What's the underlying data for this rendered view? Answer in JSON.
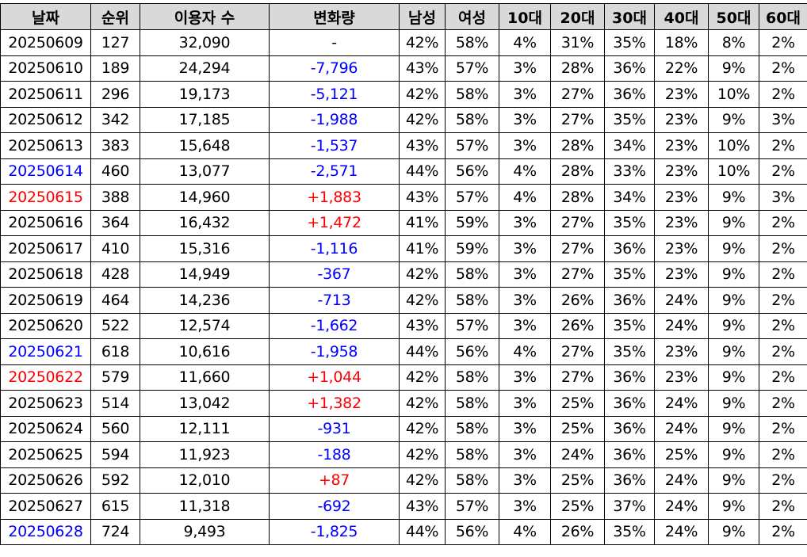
{
  "headers": [
    "날짜",
    "순위",
    "이용자 수",
    "변화량",
    "남성",
    "여성",
    "10대",
    "20대",
    "30대",
    "40대",
    "50대",
    "60대"
  ],
  "colors": {
    "header_bg": "#d9d9d9",
    "positive": "#ff0000",
    "negative": "#0000ff",
    "default": "#000000",
    "weekend_blue": "#0000ff",
    "weekend_red": "#ff0000"
  },
  "rows": [
    {
      "date": "20250609",
      "date_color": "default",
      "rank": "127",
      "users": "32,090",
      "change": "-",
      "change_color": "default",
      "male": "42%",
      "female": "58%",
      "a10": "4%",
      "a20": "31%",
      "a30": "35%",
      "a40": "18%",
      "a50": "8%",
      "a60": "2%"
    },
    {
      "date": "20250610",
      "date_color": "default",
      "rank": "189",
      "users": "24,294",
      "change": "-7,796",
      "change_color": "negative",
      "male": "43%",
      "female": "57%",
      "a10": "3%",
      "a20": "28%",
      "a30": "36%",
      "a40": "22%",
      "a50": "9%",
      "a60": "2%"
    },
    {
      "date": "20250611",
      "date_color": "default",
      "rank": "296",
      "users": "19,173",
      "change": "-5,121",
      "change_color": "negative",
      "male": "42%",
      "female": "58%",
      "a10": "3%",
      "a20": "27%",
      "a30": "36%",
      "a40": "23%",
      "a50": "10%",
      "a60": "2%"
    },
    {
      "date": "20250612",
      "date_color": "default",
      "rank": "342",
      "users": "17,185",
      "change": "-1,988",
      "change_color": "negative",
      "male": "42%",
      "female": "58%",
      "a10": "3%",
      "a20": "27%",
      "a30": "35%",
      "a40": "23%",
      "a50": "9%",
      "a60": "3%"
    },
    {
      "date": "20250613",
      "date_color": "default",
      "rank": "383",
      "users": "15,648",
      "change": "-1,537",
      "change_color": "negative",
      "male": "43%",
      "female": "57%",
      "a10": "3%",
      "a20": "28%",
      "a30": "34%",
      "a40": "23%",
      "a50": "10%",
      "a60": "2%"
    },
    {
      "date": "20250614",
      "date_color": "weekend_blue",
      "rank": "460",
      "users": "13,077",
      "change": "-2,571",
      "change_color": "negative",
      "male": "44%",
      "female": "56%",
      "a10": "4%",
      "a20": "28%",
      "a30": "33%",
      "a40": "23%",
      "a50": "10%",
      "a60": "2%"
    },
    {
      "date": "20250615",
      "date_color": "weekend_red",
      "rank": "388",
      "users": "14,960",
      "change": "+1,883",
      "change_color": "positive",
      "male": "43%",
      "female": "57%",
      "a10": "4%",
      "a20": "28%",
      "a30": "34%",
      "a40": "23%",
      "a50": "9%",
      "a60": "3%"
    },
    {
      "date": "20250616",
      "date_color": "default",
      "rank": "364",
      "users": "16,432",
      "change": "+1,472",
      "change_color": "positive",
      "male": "41%",
      "female": "59%",
      "a10": "3%",
      "a20": "27%",
      "a30": "35%",
      "a40": "23%",
      "a50": "9%",
      "a60": "2%"
    },
    {
      "date": "20250617",
      "date_color": "default",
      "rank": "410",
      "users": "15,316",
      "change": "-1,116",
      "change_color": "negative",
      "male": "41%",
      "female": "59%",
      "a10": "3%",
      "a20": "27%",
      "a30": "36%",
      "a40": "23%",
      "a50": "9%",
      "a60": "2%"
    },
    {
      "date": "20250618",
      "date_color": "default",
      "rank": "428",
      "users": "14,949",
      "change": "-367",
      "change_color": "negative",
      "male": "42%",
      "female": "58%",
      "a10": "3%",
      "a20": "27%",
      "a30": "35%",
      "a40": "23%",
      "a50": "9%",
      "a60": "2%"
    },
    {
      "date": "20250619",
      "date_color": "default",
      "rank": "464",
      "users": "14,236",
      "change": "-713",
      "change_color": "negative",
      "male": "42%",
      "female": "58%",
      "a10": "3%",
      "a20": "26%",
      "a30": "36%",
      "a40": "24%",
      "a50": "9%",
      "a60": "2%"
    },
    {
      "date": "20250620",
      "date_color": "default",
      "rank": "522",
      "users": "12,574",
      "change": "-1,662",
      "change_color": "negative",
      "male": "43%",
      "female": "57%",
      "a10": "3%",
      "a20": "26%",
      "a30": "35%",
      "a40": "24%",
      "a50": "9%",
      "a60": "2%"
    },
    {
      "date": "20250621",
      "date_color": "weekend_blue",
      "rank": "618",
      "users": "10,616",
      "change": "-1,958",
      "change_color": "negative",
      "male": "44%",
      "female": "56%",
      "a10": "4%",
      "a20": "27%",
      "a30": "35%",
      "a40": "23%",
      "a50": "9%",
      "a60": "2%"
    },
    {
      "date": "20250622",
      "date_color": "weekend_red",
      "rank": "579",
      "users": "11,660",
      "change": "+1,044",
      "change_color": "positive",
      "male": "42%",
      "female": "58%",
      "a10": "3%",
      "a20": "27%",
      "a30": "36%",
      "a40": "23%",
      "a50": "9%",
      "a60": "2%"
    },
    {
      "date": "20250623",
      "date_color": "default",
      "rank": "514",
      "users": "13,042",
      "change": "+1,382",
      "change_color": "positive",
      "male": "42%",
      "female": "58%",
      "a10": "3%",
      "a20": "25%",
      "a30": "36%",
      "a40": "24%",
      "a50": "9%",
      "a60": "2%"
    },
    {
      "date": "20250624",
      "date_color": "default",
      "rank": "560",
      "users": "12,111",
      "change": "-931",
      "change_color": "negative",
      "male": "42%",
      "female": "58%",
      "a10": "3%",
      "a20": "25%",
      "a30": "36%",
      "a40": "24%",
      "a50": "9%",
      "a60": "2%"
    },
    {
      "date": "20250625",
      "date_color": "default",
      "rank": "594",
      "users": "11,923",
      "change": "-188",
      "change_color": "negative",
      "male": "42%",
      "female": "58%",
      "a10": "3%",
      "a20": "24%",
      "a30": "36%",
      "a40": "25%",
      "a50": "9%",
      "a60": "2%"
    },
    {
      "date": "20250626",
      "date_color": "default",
      "rank": "592",
      "users": "12,010",
      "change": "+87",
      "change_color": "positive",
      "male": "42%",
      "female": "58%",
      "a10": "3%",
      "a20": "25%",
      "a30": "36%",
      "a40": "24%",
      "a50": "9%",
      "a60": "2%"
    },
    {
      "date": "20250627",
      "date_color": "default",
      "rank": "615",
      "users": "11,318",
      "change": "-692",
      "change_color": "negative",
      "male": "43%",
      "female": "57%",
      "a10": "3%",
      "a20": "25%",
      "a30": "37%",
      "a40": "24%",
      "a50": "9%",
      "a60": "2%"
    },
    {
      "date": "20250628",
      "date_color": "weekend_blue",
      "rank": "724",
      "users": "9,493",
      "change": "-1,825",
      "change_color": "negative",
      "male": "44%",
      "female": "56%",
      "a10": "4%",
      "a20": "26%",
      "a30": "35%",
      "a40": "24%",
      "a50": "9%",
      "a60": "2%"
    }
  ]
}
